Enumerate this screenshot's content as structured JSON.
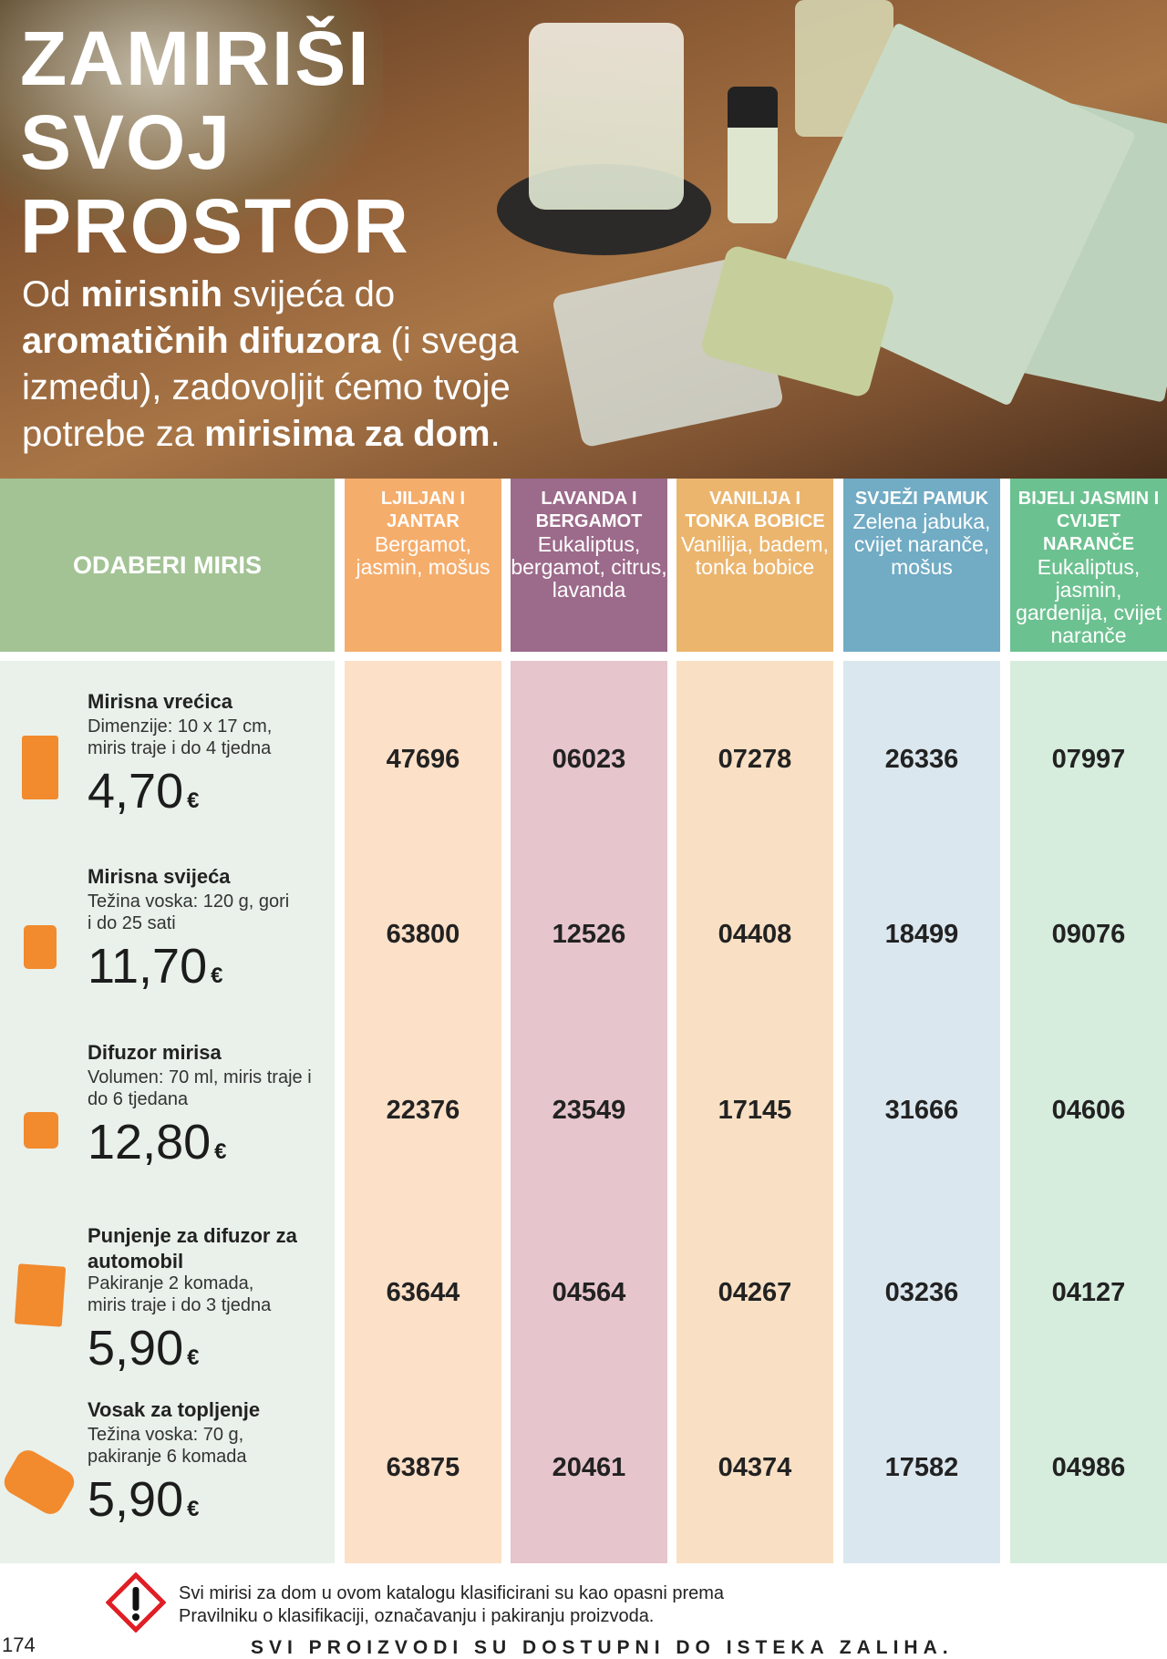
{
  "hero": {
    "title_lines": [
      "ZAMIRIŠI",
      "SVOJ",
      "PROSTOR"
    ],
    "subtitle_parts": [
      "Od ",
      "mirisnih",
      " svijeća do ",
      "aromatičnih difuzora",
      " (i svega između), zadovoljit ćemo tvoje potrebe za ",
      "mirisima za dom",
      "."
    ]
  },
  "table": {
    "header_label": "ODABERI MIRIS",
    "scents": [
      {
        "name": "LJILJAN I JANTAR",
        "notes": "Bergamot, jasmin, mošus",
        "color": "#f5ad6c",
        "light": "#fde0c8"
      },
      {
        "name": "LAVANDA I BERGAMOT",
        "notes": "Eukaliptus, bergamot, citrus, lavanda",
        "color": "#9c6a8a",
        "light": "#e6c5cd"
      },
      {
        "name": "VANILIJA I TONKA BOBICE",
        "notes": "Vanilija, badem, tonka bobice",
        "color": "#ebb56e",
        "light": "#f9e0c4"
      },
      {
        "name": "SVJEŽI PAMUK",
        "notes": "Zelena jabuka, cvijet naranče, mošus",
        "color": "#71abc4",
        "light": "#dbe7ef"
      },
      {
        "name": "BIJELI JASMIN I CVIJET NARANČE",
        "notes": "Eukaliptus, jasmin, gardenija, cvijet naranče",
        "color": "#6cc190",
        "light": "#d6ecdd"
      }
    ],
    "products": [
      {
        "title": "Mirisna vrećica",
        "desc": "Dimenzije: 10 x 17 cm, miris traje i do 4 tjedna",
        "price": "4,70",
        "currency": "€",
        "icon": "sachet-icon",
        "codes": [
          "47696",
          "06023",
          "07278",
          "26336",
          "07997"
        ]
      },
      {
        "title": "Mirisna svijeća",
        "desc": "Težina voska: 120 g, gori i do 25 sati",
        "price": "11,70",
        "currency": "€",
        "icon": "candle-icon",
        "codes": [
          "63800",
          "12526",
          "04408",
          "18499",
          "09076"
        ]
      },
      {
        "title": "Difuzor mirisa",
        "desc": "Volumen: 70 ml, miris traje i do 6 tjedana",
        "price": "12,80",
        "currency": "€",
        "icon": "diffuser-icon",
        "codes": [
          "22376",
          "23549",
          "17145",
          "31666",
          "04606"
        ]
      },
      {
        "title": "Punjenje za difuzor za automobil",
        "desc": "Pakiranje 2 komada, miris traje i do 3 tjedna",
        "price": "5,90",
        "currency": "€",
        "icon": "car-refill-icon",
        "codes": [
          "63644",
          "04564",
          "04267",
          "03236",
          "04127"
        ]
      },
      {
        "title": "Vosak za topljenje",
        "desc": "Težina voska: 70 g, pakiranje 6 komada",
        "price": "5,90",
        "currency": "€",
        "icon": "wax-melt-icon",
        "codes": [
          "63875",
          "20461",
          "04374",
          "17582",
          "04986"
        ]
      }
    ]
  },
  "footer": {
    "warning": "Svi mirisi za dom u ovom katalogu klasificirani su kao opasni prema Pravilniku o klasifikaciji, označavanju i pakiranju proizvoda.",
    "page_number": "174",
    "availability": "SVI PROIZVODI SU DOSTUPNI DO ISTEKA ZALIHA."
  }
}
